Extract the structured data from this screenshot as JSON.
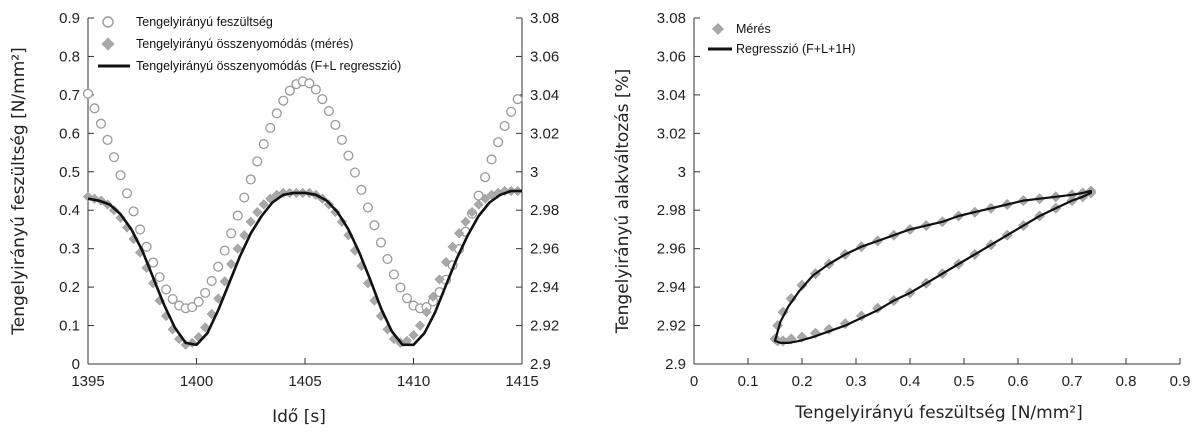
{
  "chart_data": [
    {
      "type": "line",
      "xlabel": "Idő [s]",
      "ylabel": "Tengelyirányú feszültség [N/mm²]",
      "y2label": "",
      "xlim": [
        1395,
        1415
      ],
      "ylim": [
        0,
        0.9
      ],
      "y2lim": [
        2.9,
        3.08
      ],
      "x_ticks": [
        "1395",
        "1400",
        "1405",
        "1410",
        "1415"
      ],
      "y_ticks": [
        "0",
        "0.1",
        "0.2",
        "0.3",
        "0.4",
        "0.5",
        "0.6",
        "0.7",
        "0.8",
        "0.9"
      ],
      "y2_ticks": [
        "2.9",
        "2.92",
        "2.94",
        "2.96",
        "2.98",
        "3",
        "3.02",
        "3.04",
        "3.06",
        "3.08"
      ],
      "legend_position": "top-left",
      "series": [
        {
          "name": "Tengelyirányú feszültség",
          "axis": "left",
          "marker": "open-circle",
          "color": "#9a9a9a",
          "x": [
            1395.0,
            1395.3,
            1395.6,
            1395.9,
            1396.2,
            1396.5,
            1396.8,
            1397.1,
            1397.4,
            1397.7,
            1398.0,
            1398.3,
            1398.6,
            1398.9,
            1399.2,
            1399.5,
            1399.8,
            1400.1,
            1400.4,
            1400.7,
            1401.0,
            1401.3,
            1401.6,
            1401.9,
            1402.2,
            1402.5,
            1402.8,
            1403.1,
            1403.4,
            1403.7,
            1404.0,
            1404.3,
            1404.6,
            1404.9,
            1405.2,
            1405.5,
            1405.8,
            1406.1,
            1406.4,
            1406.7,
            1407.0,
            1407.3,
            1407.6,
            1407.9,
            1408.2,
            1408.5,
            1408.8,
            1409.1,
            1409.4,
            1409.7,
            1410.0,
            1410.3,
            1410.6,
            1410.9,
            1411.2,
            1411.5,
            1411.8,
            1412.1,
            1412.4,
            1412.7,
            1413.0,
            1413.3,
            1413.6,
            1413.9,
            1414.2,
            1414.5,
            1414.8
          ],
          "y": [
            0.703,
            0.665,
            0.625,
            0.583,
            0.538,
            0.491,
            0.444,
            0.397,
            0.35,
            0.305,
            0.264,
            0.226,
            0.194,
            0.169,
            0.152,
            0.145,
            0.148,
            0.162,
            0.185,
            0.216,
            0.253,
            0.295,
            0.34,
            0.386,
            0.433,
            0.48,
            0.527,
            0.572,
            0.614,
            0.652,
            0.685,
            0.711,
            0.728,
            0.735,
            0.73,
            0.714,
            0.689,
            0.658,
            0.622,
            0.583,
            0.542,
            0.498,
            0.453,
            0.407,
            0.361,
            0.316,
            0.273,
            0.233,
            0.199,
            0.171,
            0.152,
            0.145,
            0.148,
            0.163,
            0.187,
            0.219,
            0.257,
            0.299,
            0.344,
            0.391,
            0.438,
            0.486,
            0.532,
            0.577,
            0.619,
            0.656,
            0.689
          ]
        },
        {
          "name": "Tengelyirányú összenyomódás (mérés)",
          "axis": "right",
          "marker": "diamond",
          "color": "#a9a9a9",
          "x": [
            1395.0,
            1395.3,
            1395.6,
            1395.9,
            1396.2,
            1396.5,
            1396.8,
            1397.1,
            1397.4,
            1397.7,
            1398.0,
            1398.3,
            1398.6,
            1398.9,
            1399.2,
            1399.5,
            1399.8,
            1400.1,
            1400.4,
            1400.7,
            1401.0,
            1401.3,
            1401.6,
            1401.9,
            1402.2,
            1402.5,
            1402.8,
            1403.1,
            1403.4,
            1403.7,
            1404.0,
            1404.3,
            1404.6,
            1404.9,
            1405.2,
            1405.5,
            1405.8,
            1406.1,
            1406.4,
            1406.7,
            1407.0,
            1407.3,
            1407.6,
            1407.9,
            1408.2,
            1408.5,
            1408.8,
            1409.1,
            1409.4,
            1409.7,
            1410.0,
            1410.3,
            1410.6,
            1410.9,
            1411.2,
            1411.5,
            1411.8,
            1412.1,
            1412.4,
            1412.7,
            1413.0,
            1413.3,
            1413.6,
            1413.9,
            1414.2,
            1414.5,
            1414.8
          ],
          "y": [
            2.987,
            2.986,
            2.985,
            2.983,
            2.98,
            2.976,
            2.971,
            2.965,
            2.958,
            2.95,
            2.942,
            2.933,
            2.925,
            2.918,
            2.913,
            2.91,
            2.911,
            2.914,
            2.919,
            2.926,
            2.934,
            2.943,
            2.952,
            2.96,
            2.967,
            2.974,
            2.979,
            2.983,
            2.986,
            2.988,
            2.989,
            2.989,
            2.989,
            2.989,
            2.989,
            2.988,
            2.986,
            2.983,
            2.979,
            2.974,
            2.967,
            2.959,
            2.951,
            2.942,
            2.933,
            2.925,
            2.918,
            2.913,
            2.911,
            2.912,
            2.915,
            2.92,
            2.927,
            2.935,
            2.944,
            2.953,
            2.961,
            2.968,
            2.974,
            2.979,
            2.983,
            2.986,
            2.988,
            2.989,
            2.99,
            2.99,
            2.99
          ]
        },
        {
          "name": "Tengelyirányú összenyomódás (F+L regresszió)",
          "axis": "right",
          "marker": "line",
          "color": "#111111",
          "x": [
            1395.0,
            1395.5,
            1396.0,
            1396.5,
            1397.0,
            1397.5,
            1398.0,
            1398.5,
            1399.0,
            1399.5,
            1400.0,
            1400.5,
            1401.0,
            1401.5,
            1402.0,
            1402.5,
            1403.0,
            1403.5,
            1404.0,
            1404.5,
            1405.0,
            1405.5,
            1406.0,
            1406.5,
            1407.0,
            1407.5,
            1408.0,
            1408.5,
            1409.0,
            1409.5,
            1410.0,
            1410.5,
            1411.0,
            1411.5,
            1412.0,
            1412.5,
            1413.0,
            1413.5,
            1414.0,
            1414.5,
            1415.0
          ],
          "y": [
            2.986,
            2.985,
            2.983,
            2.978,
            2.97,
            2.959,
            2.945,
            2.931,
            2.919,
            2.911,
            2.91,
            2.916,
            2.928,
            2.942,
            2.956,
            2.968,
            2.977,
            2.984,
            2.988,
            2.989,
            2.989,
            2.988,
            2.985,
            2.979,
            2.97,
            2.958,
            2.944,
            2.929,
            2.917,
            2.91,
            2.91,
            2.916,
            2.927,
            2.941,
            2.955,
            2.967,
            2.977,
            2.984,
            2.988,
            2.99,
            2.99
          ]
        }
      ]
    },
    {
      "type": "scatter",
      "xlabel": "Tengelyirányú feszültség [N/mm²]",
      "ylabel": "Tengelyirányú alakváltozás [%]",
      "xlim": [
        0,
        0.9
      ],
      "ylim": [
        2.9,
        3.08
      ],
      "x_ticks": [
        "0",
        "0.1",
        "0.2",
        "0.3",
        "0.4",
        "0.5",
        "0.6",
        "0.7",
        "0.8",
        "0.9"
      ],
      "y_ticks": [
        "2.9",
        "2.92",
        "2.94",
        "2.96",
        "2.98",
        "3",
        "3.02",
        "3.04",
        "3.06",
        "3.08"
      ],
      "legend_position": "top-left",
      "series": [
        {
          "name": "Mérés",
          "marker": "diamond",
          "color": "#a9a9a9",
          "x": [
            0.15,
            0.155,
            0.165,
            0.18,
            0.2,
            0.225,
            0.25,
            0.28,
            0.31,
            0.34,
            0.37,
            0.4,
            0.43,
            0.46,
            0.49,
            0.52,
            0.55,
            0.58,
            0.61,
            0.64,
            0.67,
            0.7,
            0.72,
            0.735,
            0.735,
            0.72,
            0.7,
            0.67,
            0.64,
            0.61,
            0.58,
            0.55,
            0.52,
            0.49,
            0.46,
            0.43,
            0.4,
            0.37,
            0.34,
            0.31,
            0.28,
            0.25,
            0.225,
            0.2,
            0.18,
            0.165,
            0.155
          ],
          "y": [
            2.913,
            2.92,
            2.927,
            2.934,
            2.941,
            2.947,
            2.952,
            2.957,
            2.961,
            2.964,
            2.967,
            2.97,
            2.972,
            2.974,
            2.977,
            2.979,
            2.981,
            2.983,
            2.985,
            2.986,
            2.987,
            2.988,
            2.989,
            2.99,
            2.989,
            2.987,
            2.985,
            2.981,
            2.977,
            2.972,
            2.967,
            2.962,
            2.957,
            2.952,
            2.947,
            2.942,
            2.937,
            2.933,
            2.929,
            2.925,
            2.921,
            2.918,
            2.916,
            2.914,
            2.913,
            2.912,
            2.912
          ]
        },
        {
          "name": "Regresszió (F+L+1H)",
          "marker": "line",
          "color": "#111111",
          "x": [
            0.15,
            0.16,
            0.175,
            0.195,
            0.22,
            0.25,
            0.28,
            0.31,
            0.34,
            0.37,
            0.4,
            0.43,
            0.46,
            0.49,
            0.52,
            0.55,
            0.58,
            0.61,
            0.64,
            0.67,
            0.7,
            0.72,
            0.735,
            0.735,
            0.72,
            0.7,
            0.67,
            0.64,
            0.61,
            0.58,
            0.55,
            0.52,
            0.49,
            0.46,
            0.43,
            0.4,
            0.37,
            0.34,
            0.31,
            0.28,
            0.25,
            0.22,
            0.195,
            0.175,
            0.16,
            0.15
          ],
          "y": [
            2.912,
            2.922,
            2.93,
            2.938,
            2.946,
            2.952,
            2.957,
            2.961,
            2.964,
            2.967,
            2.97,
            2.972,
            2.974,
            2.977,
            2.979,
            2.981,
            2.983,
            2.985,
            2.986,
            2.987,
            2.988,
            2.989,
            2.99,
            2.989,
            2.987,
            2.985,
            2.981,
            2.977,
            2.972,
            2.967,
            2.962,
            2.957,
            2.952,
            2.947,
            2.942,
            2.937,
            2.933,
            2.928,
            2.924,
            2.92,
            2.917,
            2.914,
            2.912,
            2.911,
            2.911,
            2.912
          ]
        }
      ]
    }
  ]
}
